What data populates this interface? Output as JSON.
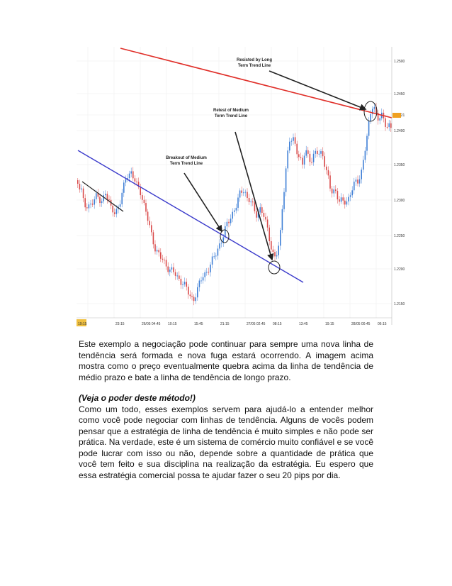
{
  "chart": {
    "annotations": {
      "long_line": [
        "Resisted by Long",
        "Term Trend Line"
      ],
      "retest": [
        "Retest of Medium",
        "Term Trend Line"
      ],
      "breakout": [
        "Breakout of Medium",
        "Term Trend Line"
      ]
    },
    "price_labels": [
      "1.2500",
      "1.2450",
      "1.2421",
      "1.2400",
      "1.2350",
      "1.2300",
      "1.2250",
      "1.2200",
      "1.2150"
    ],
    "current_price": "1.2421",
    "time_labels": [
      "19:15",
      "23:15",
      "26/05 04:45",
      "10:15",
      "15:45",
      "21:15",
      "27/05 02:45",
      "08:15",
      "13:45",
      "19:15",
      "28/05 00:45",
      "06:15"
    ],
    "colors": {
      "long_trend_line": "#e0302a",
      "medium_trend_line": "#3a3acb",
      "up_candle": "#3f7fd6",
      "down_candle": "#d94a4a"
    }
  },
  "text": {
    "para1": "Este exemplo a negociação pode continuar para sempre uma nova linha de tendência será formada e nova fuga estará ocorrendo. A imagem acima mostra como o preço eventualmente quebra acima da linha de tendência de médio prazo e bate a linha de tendência de longo prazo.",
    "heading": "(Veja o poder deste método!)",
    "para2": "Como um todo, esses exemplos servem para ajudá-lo a entender melhor como você pode negociar com linhas de tendência. Alguns de vocês podem pensar que a estratégia de linha de tendência é muito simples e não pode ser prática. Na verdade, este é um sistema de comércio muito confiável e se você pode lucrar com isso ou não, depende sobre a quantidade de prática que você tem feito e sua disciplina na realização da estratégia. Eu espero que essa estratégia comercial possa te ajudar fazer o seu 20 pips por dia."
  }
}
